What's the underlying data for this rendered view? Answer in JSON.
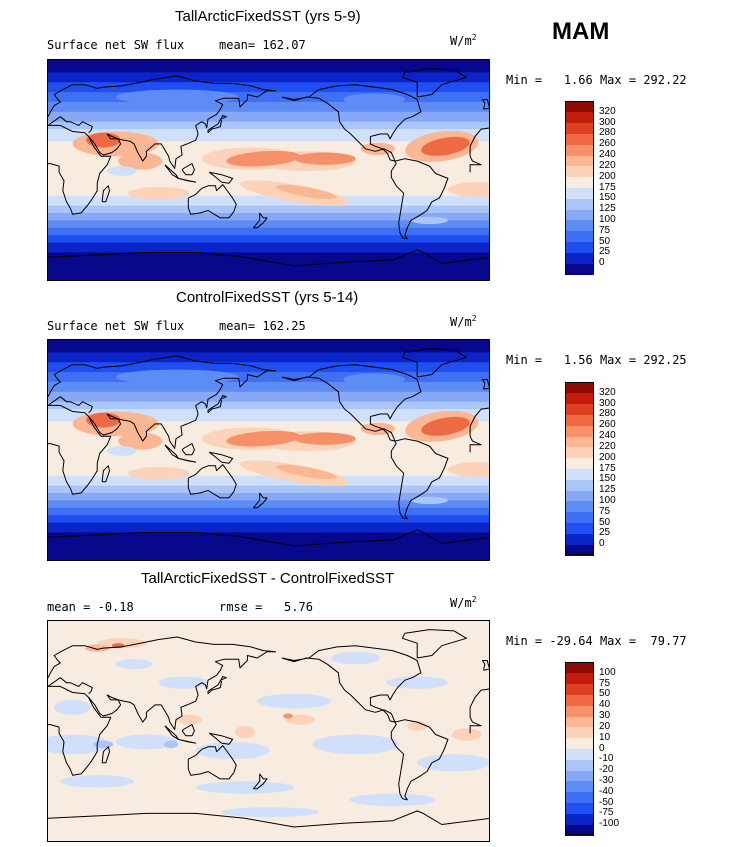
{
  "season": "MAM",
  "panels": [
    {
      "title": "TallArcticFixedSST (yrs 5-9)",
      "variable": "Surface net SW flux",
      "stat_label": "mean=",
      "stat_value": "162.07",
      "units": "W/m",
      "units_exp": "2",
      "min_label": "Min =",
      "min_value": "1.66",
      "max_label": "Max =",
      "max_value": "292.22",
      "levels": [
        "0",
        "25",
        "50",
        "75",
        "100",
        "125",
        "150",
        "175",
        "200",
        "220",
        "240",
        "260",
        "280",
        "300",
        "320"
      ]
    },
    {
      "title": "ControlFixedSST (yrs 5-14)",
      "variable": "Surface net SW flux",
      "stat_label": "mean=",
      "stat_value": "162.25",
      "units": "W/m",
      "units_exp": "2",
      "min_label": "Min =",
      "min_value": "1.56",
      "max_label": "Max =",
      "max_value": "292.25",
      "levels": [
        "0",
        "25",
        "50",
        "75",
        "100",
        "125",
        "150",
        "175",
        "200",
        "220",
        "240",
        "260",
        "280",
        "300",
        "320"
      ]
    },
    {
      "title": "TallArcticFixedSST - ControlFixedSST",
      "stat1_label": "mean =",
      "stat1_value": "-0.18",
      "stat2_label": "rmse =",
      "stat2_value": "5.76",
      "units": "W/m",
      "units_exp": "2",
      "min_label": "Min =",
      "min_value": "-29.64",
      "max_label": "Max =",
      "max_value": "79.77",
      "levels": [
        "-100",
        "-75",
        "-50",
        "-40",
        "-30",
        "-20",
        "-10",
        "0",
        "10",
        "20",
        "30",
        "40",
        "50",
        "75",
        "100"
      ]
    }
  ],
  "colors": {
    "scale": [
      "#08088c",
      "#0a24c8",
      "#1f4ff0",
      "#3f6ff2",
      "#5d8cf5",
      "#86a8f6",
      "#aac6f8",
      "#d0e0fa",
      "#f8ebdf",
      "#fcd2b8",
      "#fbb693",
      "#f69068",
      "#ee6a45",
      "#dd4021",
      "#c41c0c",
      "#8e0a05"
    ],
    "land_line": "#000000"
  }
}
